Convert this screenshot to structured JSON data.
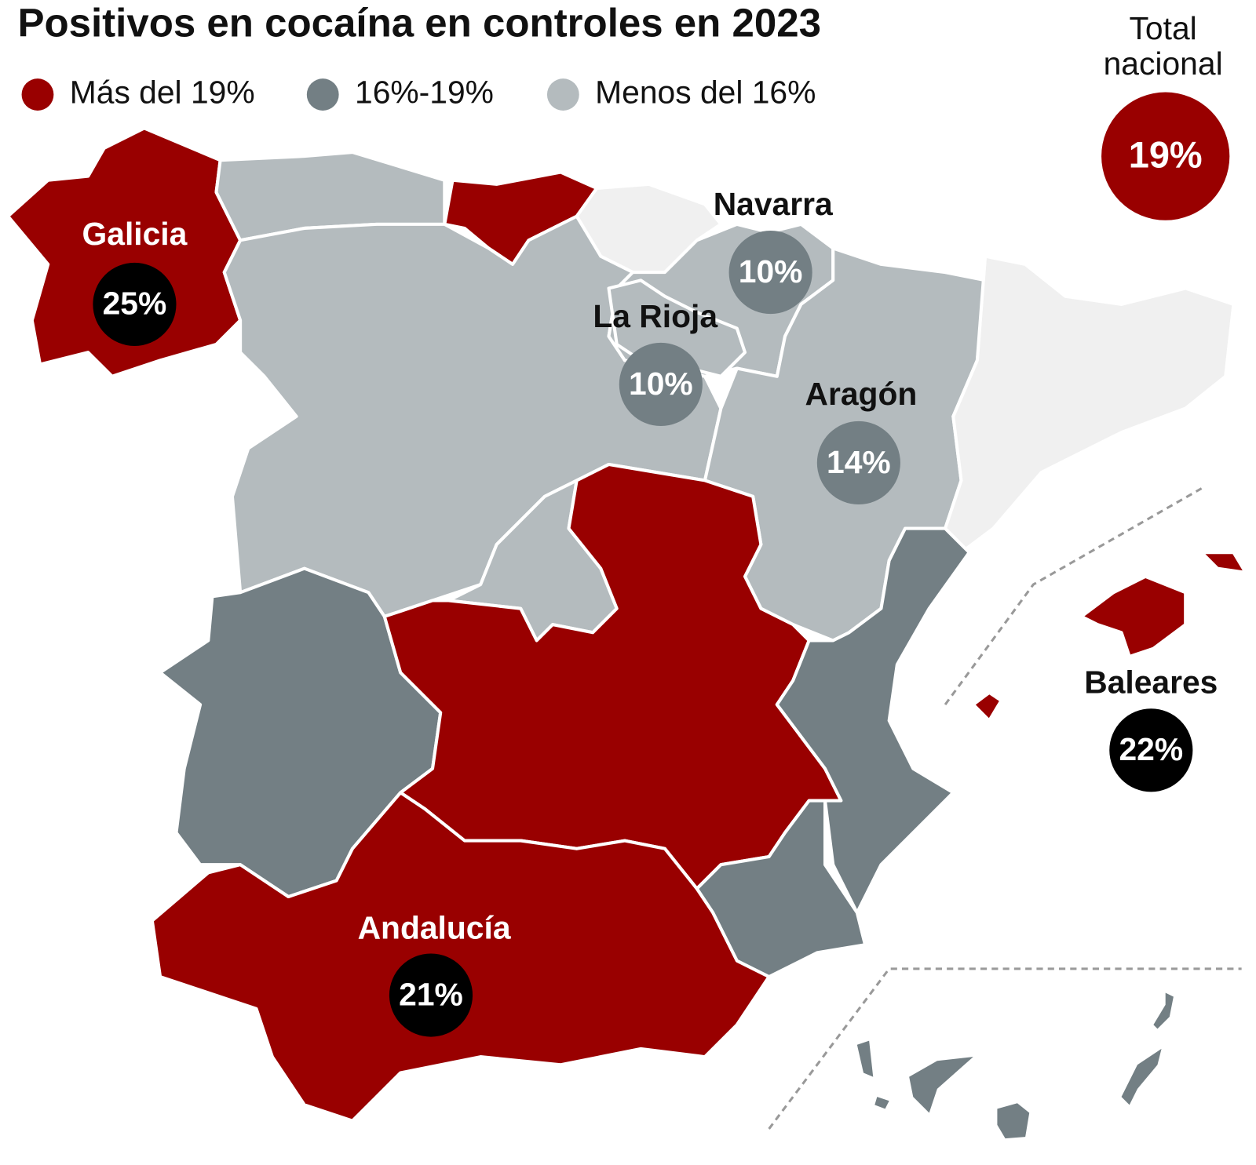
{
  "title": "Positivos en cocaína en controles en 2023",
  "legend": [
    {
      "label": "Más del 19%",
      "color": "#990000"
    },
    {
      "label": "16%-19%",
      "color": "#737f84"
    },
    {
      "label": "Menos del 16%",
      "color": "#b4bbbe"
    }
  ],
  "total": {
    "label": "Total nacional",
    "value": "19%",
    "color": "#990000"
  },
  "regions": [
    {
      "name": "Galicia",
      "value": "25%",
      "badge_color": "#000000",
      "label_color": "#ffffff"
    },
    {
      "name": "Navarra",
      "value": "10%",
      "badge_color": "#737f84",
      "label_color": "#111111"
    },
    {
      "name": "La Rioja",
      "value": "10%",
      "badge_color": "#737f84",
      "label_color": "#111111"
    },
    {
      "name": "Aragón",
      "value": "14%",
      "badge_color": "#737f84",
      "label_color": "#111111"
    },
    {
      "name": "Andalucía",
      "value": "21%",
      "badge_color": "#000000",
      "label_color": "#ffffff"
    },
    {
      "name": "Baleares",
      "value": "22%",
      "badge_color": "#000000",
      "label_color": "#111111"
    }
  ]
}
